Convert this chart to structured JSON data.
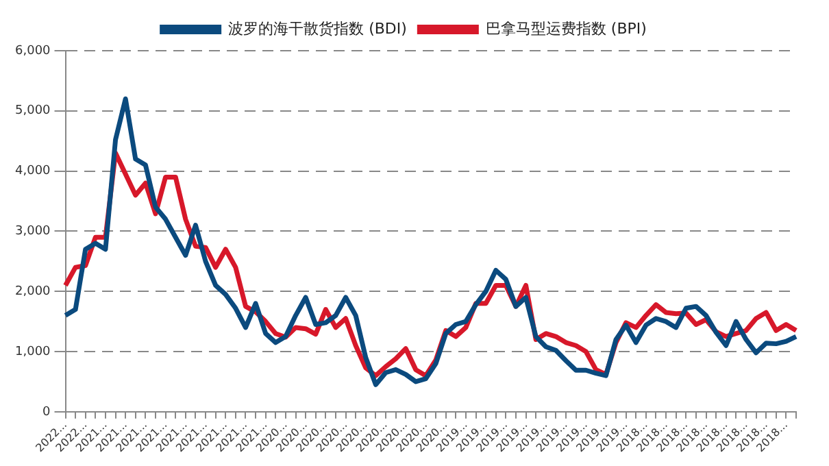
{
  "chart_data": {
    "type": "line",
    "legend": "top",
    "grid": "y",
    "marker": "none",
    "line_style": "solid",
    "categories": [
      "2022...",
      null,
      "2022...",
      null,
      "2021...",
      null,
      "2021...",
      null,
      "2021...",
      null,
      "2021...",
      null,
      "2021...",
      null,
      "2021...",
      null,
      "2021...",
      null,
      "2021...",
      null,
      "2021...",
      null,
      "2020...",
      null,
      "2020...",
      null,
      "2020...",
      null,
      "2020...",
      null,
      "2020...",
      null,
      "2020...",
      null,
      "2020...",
      null,
      "2020...",
      null,
      "2020...",
      null,
      "2019...",
      null,
      "2019...",
      null,
      "2019...",
      null,
      "2019...",
      null,
      "2019...",
      null,
      "2019...",
      null,
      "2019...",
      null,
      "2019...",
      null,
      "2019...",
      null,
      "2018...",
      null,
      "2018...",
      null,
      "2018...",
      null,
      "2018...",
      null,
      "2018...",
      null,
      "2018...",
      null,
      "2018...",
      null,
      "2018...",
      null
    ],
    "ylim": [
      0,
      6000
    ],
    "yticks": [
      0,
      {
        "value": 1000,
        "label": "1,000"
      },
      {
        "value": 2000,
        "label": "2,000"
      },
      {
        "value": 3000,
        "label": "3,000"
      },
      {
        "value": 4000,
        "label": "4,000"
      },
      {
        "value": 5000,
        "label": "5,000"
      },
      {
        "value": 6000,
        "label": "6,000"
      }
    ],
    "series": [
      {
        "name": "波罗的海干散货指数 (BDI)",
        "color": "#0b4a7e",
        "values": [
          1600,
          1700,
          2700,
          2800,
          2700,
          4520,
          5200,
          4200,
          4100,
          3400,
          3200,
          2900,
          2600,
          3100,
          2500,
          2100,
          1950,
          1720,
          1400,
          1800,
          1300,
          1150,
          1250,
          1600,
          1900,
          1450,
          1480,
          1600,
          1900,
          1600,
          900,
          450,
          650,
          700,
          620,
          500,
          550,
          800,
          1300,
          1450,
          1500,
          1780,
          2000,
          2350,
          2200,
          1750,
          1900,
          1250,
          1080,
          1020,
          850,
          690,
          690,
          640,
          600,
          1200,
          1440,
          1150,
          1440,
          1550,
          1500,
          1400,
          1720,
          1750,
          1600,
          1320,
          1100,
          1500,
          1200,
          980,
          1140,
          1130,
          1170,
          1250
        ]
      },
      {
        "name": "巴拿马型运费指数 (BPI)",
        "color": "#d7182a",
        "values": [
          2100,
          2400,
          2430,
          2900,
          2900,
          4300,
          3950,
          3600,
          3800,
          3290,
          3900,
          3900,
          3200,
          2750,
          2730,
          2400,
          2700,
          2400,
          1750,
          1660,
          1500,
          1300,
          1240,
          1400,
          1380,
          1290,
          1700,
          1400,
          1550,
          1100,
          730,
          600,
          750,
          880,
          1050,
          700,
          600,
          860,
          1350,
          1250,
          1400,
          1800,
          1800,
          2100,
          2100,
          1750,
          2100,
          1200,
          1300,
          1250,
          1150,
          1100,
          1000,
          700,
          620,
          1150,
          1480,
          1400,
          1600,
          1780,
          1650,
          1630,
          1640,
          1450,
          1530,
          1330,
          1250,
          1300,
          1350,
          1550,
          1650,
          1350,
          1450,
          1350
        ]
      }
    ]
  }
}
